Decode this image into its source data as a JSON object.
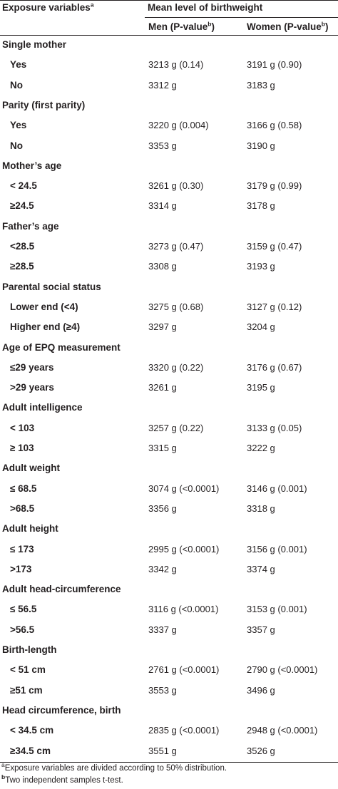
{
  "header": {
    "exposure_label": "Exposure variables",
    "exposure_sup": "a",
    "mean_label": "Mean level of birthweight",
    "men_label": "Men (P-value",
    "men_sup": "b",
    "women_label": "Women (P-value",
    "women_sup": "b",
    "close_paren": ")"
  },
  "groups": [
    {
      "label": "Single mother",
      "rows": [
        {
          "label": "Yes",
          "men": "3213 g (0.14)",
          "women": "3191 g (0.90)"
        },
        {
          "label": "No",
          "men": "3312 g",
          "women": "3183 g"
        }
      ]
    },
    {
      "label": "Parity (first parity)",
      "rows": [
        {
          "label": "Yes",
          "men": "3220 g (0.004)",
          "women": "3166 g (0.58)"
        },
        {
          "label": "No",
          "men": "3353 g",
          "women": "3190 g"
        }
      ]
    },
    {
      "label": "Mother’s age",
      "rows": [
        {
          "label": "< 24.5",
          "men": "3261 g (0.30)",
          "women": "3179 g (0.99)"
        },
        {
          "label": "≥24.5",
          "men": "3314 g",
          "women": "3178 g"
        }
      ]
    },
    {
      "label": "Father’s age",
      "rows": [
        {
          "label": "<28.5",
          "men": "3273 g (0.47)",
          "women": "3159 g (0.47)"
        },
        {
          "label": "≥28.5",
          "men": "3308 g",
          "women": "3193 g"
        }
      ]
    },
    {
      "label": "Parental social status",
      "rows": [
        {
          "label": "Lower end (<4)",
          "men": "3275 g (0.68)",
          "women": "3127 g (0.12)"
        },
        {
          "label": "Higher end (≥4)",
          "men": "3297 g",
          "women": "3204 g"
        }
      ]
    },
    {
      "label": "Age of EPQ measurement",
      "rows": [
        {
          "label": "≤29 years",
          "men": "3320 g (0.22)",
          "women": "3176 g (0.67)"
        },
        {
          "label": ">29 years",
          "men": "3261 g",
          "women": "3195 g"
        }
      ]
    },
    {
      "label": "Adult intelligence",
      "rows": [
        {
          "label": "< 103",
          "men": "3257 g (0.22)",
          "women": "3133 g (0.05)"
        },
        {
          "label": "≥ 103",
          "men": "3315 g",
          "women": "3222 g"
        }
      ]
    },
    {
      "label": "Adult weight",
      "rows": [
        {
          "label": "≤ 68.5",
          "men": "3074 g (<0.0001)",
          "women": "3146 g (0.001)"
        },
        {
          "label": ">68.5",
          "men": "3356 g",
          "women": "3318 g"
        }
      ]
    },
    {
      "label": "Adult height",
      "rows": [
        {
          "label": "≤ 173",
          "men": "2995 g (<0.0001)",
          "women": "3156 g (0.001)"
        },
        {
          "label": ">173",
          "men": "3342 g",
          "women": "3374 g"
        }
      ]
    },
    {
      "label": "Adult head-circumference",
      "rows": [
        {
          "label": "≤ 56.5",
          "men": "3116 g (<0.0001)",
          "women": "3153 g (0.001)"
        },
        {
          "label": ">56.5",
          "men": "3337 g",
          "women": "3357 g"
        }
      ]
    },
    {
      "label": "Birth-length",
      "rows": [
        {
          "label": "< 51 cm",
          "men": "2761 g (<0.0001)",
          "women": "2790 g (<0.0001)"
        },
        {
          "label": "≥51 cm",
          "men": "3553 g",
          "women": "3496 g"
        }
      ]
    },
    {
      "label": "Head circumference, birth",
      "rows": [
        {
          "label": "< 34.5 cm",
          "men": "2835 g (<0.0001)",
          "women": "2948 g (<0.0001)"
        },
        {
          "label": "≥34.5 cm",
          "men": "3551 g",
          "women": "3526 g"
        }
      ]
    }
  ],
  "footnotes": {
    "a_marker": "a",
    "a_text": "Exposure variables are divided according to 50% distribution.",
    "b_marker": "b",
    "b_text": "Two independent samples t-test."
  }
}
